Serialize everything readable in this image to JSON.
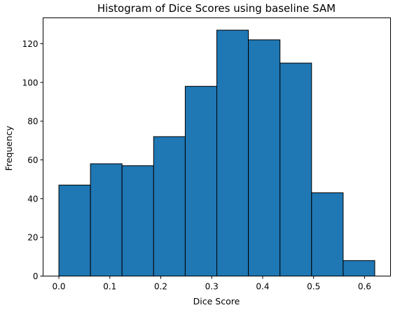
{
  "chart_data": {
    "type": "bar",
    "title": "Histogram of Dice Scores using baseline SAM",
    "xlabel": "Dice Score",
    "ylabel": "Frequency",
    "bin_edges": [
      0.0,
      0.062,
      0.124,
      0.186,
      0.248,
      0.31,
      0.372,
      0.434,
      0.496,
      0.558,
      0.62
    ],
    "values": [
      47,
      58,
      57,
      72,
      98,
      127,
      122,
      110,
      43,
      8
    ],
    "xlim": [
      -0.031,
      0.651
    ],
    "ylim": [
      0,
      133.35
    ],
    "xticks": [
      0.0,
      0.1,
      0.2,
      0.3,
      0.4,
      0.5,
      0.6
    ],
    "xtick_labels": [
      "0.0",
      "0.1",
      "0.2",
      "0.3",
      "0.4",
      "0.5",
      "0.6"
    ],
    "yticks": [
      0,
      20,
      40,
      60,
      80,
      100,
      120
    ],
    "ytick_labels": [
      "0",
      "20",
      "40",
      "60",
      "80",
      "100",
      "120"
    ],
    "grid": false,
    "bar_color": "#1f77b4",
    "edge_color": "#000000"
  }
}
